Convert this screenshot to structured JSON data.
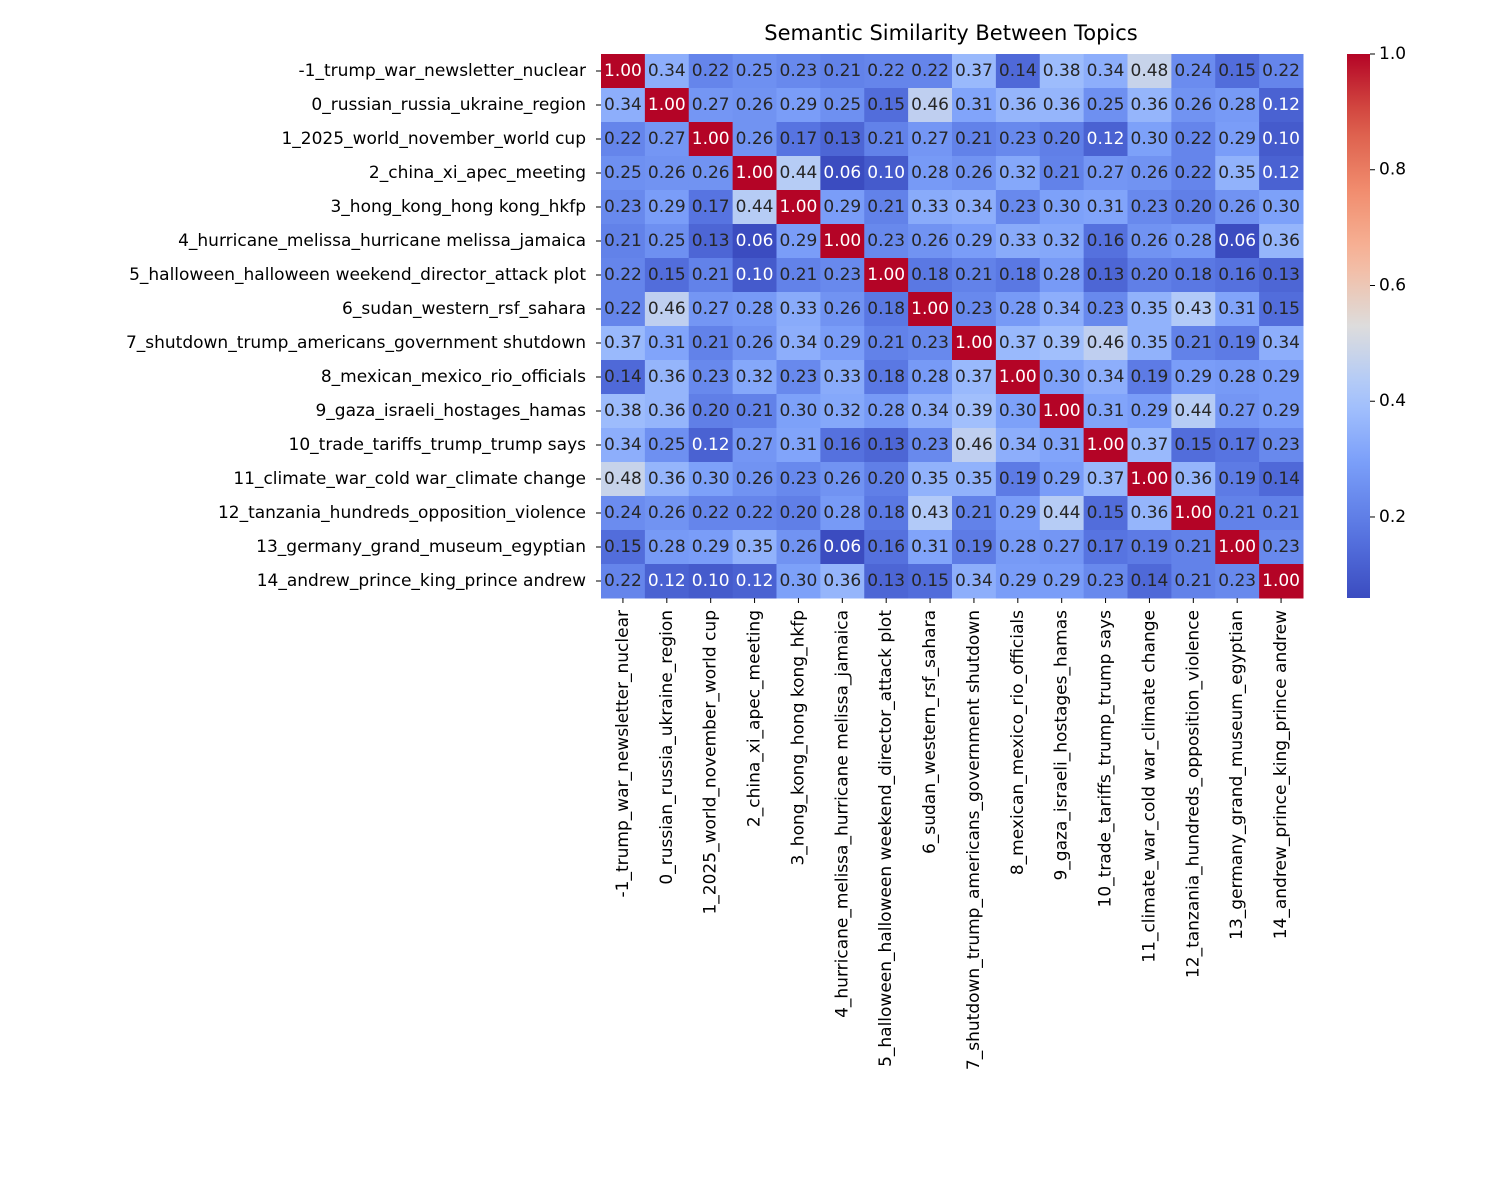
{
  "chart_data": {
    "type": "heatmap",
    "title": "Semantic Similarity Between Topics",
    "categories": [
      "-1_trump_war_newsletter_nuclear",
      "0_russian_russia_ukraine_region",
      "1_2025_world_november_world cup",
      "2_china_xi_apec_meeting",
      "3_hong_kong_hong kong_hkfp",
      "4_hurricane_melissa_hurricane melissa_jamaica",
      "5_halloween_halloween weekend_director_attack plot",
      "6_sudan_western_rsf_sahara",
      "7_shutdown_trump_americans_government shutdown",
      "8_mexican_mexico_rio_officials",
      "9_gaza_israeli_hostages_hamas",
      "10_trade_tariffs_trump_trump says",
      "11_climate_war_cold war_climate change",
      "12_tanzania_hundreds_opposition_violence",
      "13_germany_grand_museum_egyptian",
      "14_andrew_prince_king_prince andrew"
    ],
    "values": [
      [
        1.0,
        0.34,
        0.22,
        0.25,
        0.23,
        0.21,
        0.22,
        0.22,
        0.37,
        0.14,
        0.38,
        0.34,
        0.48,
        0.24,
        0.15,
        0.22
      ],
      [
        0.34,
        1.0,
        0.27,
        0.26,
        0.29,
        0.25,
        0.15,
        0.46,
        0.31,
        0.36,
        0.36,
        0.25,
        0.36,
        0.26,
        0.28,
        0.12
      ],
      [
        0.22,
        0.27,
        1.0,
        0.26,
        0.17,
        0.13,
        0.21,
        0.27,
        0.21,
        0.23,
        0.2,
        0.12,
        0.3,
        0.22,
        0.29,
        0.1
      ],
      [
        0.25,
        0.26,
        0.26,
        1.0,
        0.44,
        0.06,
        0.1,
        0.28,
        0.26,
        0.32,
        0.21,
        0.27,
        0.26,
        0.22,
        0.35,
        0.12
      ],
      [
        0.23,
        0.29,
        0.17,
        0.44,
        1.0,
        0.29,
        0.21,
        0.33,
        0.34,
        0.23,
        0.3,
        0.31,
        0.23,
        0.2,
        0.26,
        0.3
      ],
      [
        0.21,
        0.25,
        0.13,
        0.06,
        0.29,
        1.0,
        0.23,
        0.26,
        0.29,
        0.33,
        0.32,
        0.16,
        0.26,
        0.28,
        0.06,
        0.36
      ],
      [
        0.22,
        0.15,
        0.21,
        0.1,
        0.21,
        0.23,
        1.0,
        0.18,
        0.21,
        0.18,
        0.28,
        0.13,
        0.2,
        0.18,
        0.16,
        0.13
      ],
      [
        0.22,
        0.46,
        0.27,
        0.28,
        0.33,
        0.26,
        0.18,
        1.0,
        0.23,
        0.28,
        0.34,
        0.23,
        0.35,
        0.43,
        0.31,
        0.15
      ],
      [
        0.37,
        0.31,
        0.21,
        0.26,
        0.34,
        0.29,
        0.21,
        0.23,
        1.0,
        0.37,
        0.39,
        0.46,
        0.35,
        0.21,
        0.19,
        0.34
      ],
      [
        0.14,
        0.36,
        0.23,
        0.32,
        0.23,
        0.33,
        0.18,
        0.28,
        0.37,
        1.0,
        0.3,
        0.34,
        0.19,
        0.29,
        0.28,
        0.29
      ],
      [
        0.38,
        0.36,
        0.2,
        0.21,
        0.3,
        0.32,
        0.28,
        0.34,
        0.39,
        0.3,
        1.0,
        0.31,
        0.29,
        0.44,
        0.27,
        0.29
      ],
      [
        0.34,
        0.25,
        0.12,
        0.27,
        0.31,
        0.16,
        0.13,
        0.23,
        0.46,
        0.34,
        0.31,
        1.0,
        0.37,
        0.15,
        0.17,
        0.23
      ],
      [
        0.48,
        0.36,
        0.3,
        0.26,
        0.23,
        0.26,
        0.2,
        0.35,
        0.35,
        0.19,
        0.29,
        0.37,
        1.0,
        0.36,
        0.19,
        0.14
      ],
      [
        0.24,
        0.26,
        0.22,
        0.22,
        0.2,
        0.28,
        0.18,
        0.43,
        0.21,
        0.29,
        0.44,
        0.15,
        0.36,
        1.0,
        0.21,
        0.21
      ],
      [
        0.15,
        0.28,
        0.29,
        0.35,
        0.26,
        0.06,
        0.16,
        0.31,
        0.19,
        0.28,
        0.27,
        0.17,
        0.19,
        0.21,
        1.0,
        0.23
      ],
      [
        0.22,
        0.12,
        0.1,
        0.12,
        0.3,
        0.36,
        0.13,
        0.15,
        0.34,
        0.29,
        0.29,
        0.23,
        0.14,
        0.21,
        0.23,
        1.0
      ]
    ],
    "value_labels": [
      [
        "1.00",
        "0.34",
        "0.22",
        "0.25",
        "0.23",
        "0.21",
        "0.22",
        "0.22",
        "0.37",
        "0.14",
        "0.38",
        "0.34",
        "0.48",
        "0.24",
        "0.15",
        "0.22"
      ],
      [
        "0.34",
        "1.00",
        "0.27",
        "0.26",
        "0.29",
        "0.25",
        "0.15",
        "0.46",
        "0.31",
        "0.36",
        "0.36",
        "0.25",
        "0.36",
        "0.26",
        "0.28",
        "0.12"
      ],
      [
        "0.22",
        "0.27",
        "1.00",
        "0.26",
        "0.17",
        "0.13",
        "0.21",
        "0.27",
        "0.21",
        "0.23",
        "0.20",
        "0.12",
        "0.30",
        "0.22",
        "0.29",
        "0.10"
      ],
      [
        "0.25",
        "0.26",
        "0.26",
        "1.00",
        "0.44",
        "0.06",
        "0.10",
        "0.28",
        "0.26",
        "0.32",
        "0.21",
        "0.27",
        "0.26",
        "0.22",
        "0.35",
        "0.12"
      ],
      [
        "0.23",
        "0.29",
        "0.17",
        "0.44",
        "1.00",
        "0.29",
        "0.21",
        "0.33",
        "0.34",
        "0.23",
        "0.30",
        "0.31",
        "0.23",
        "0.20",
        "0.26",
        "0.30"
      ],
      [
        "0.21",
        "0.25",
        "0.13",
        "0.06",
        "0.29",
        "1.00",
        "0.23",
        "0.26",
        "0.29",
        "0.33",
        "0.32",
        "0.16",
        "0.26",
        "0.28",
        "0.06",
        "0.36"
      ],
      [
        "0.22",
        "0.15",
        "0.21",
        "0.10",
        "0.21",
        "0.23",
        "1.00",
        "0.18",
        "0.21",
        "0.18",
        "0.28",
        "0.13",
        "0.20",
        "0.18",
        "0.16",
        "0.13"
      ],
      [
        "0.22",
        "0.46",
        "0.27",
        "0.28",
        "0.33",
        "0.26",
        "0.18",
        "1.00",
        "0.23",
        "0.28",
        "0.34",
        "0.23",
        "0.35",
        "0.43",
        "0.31",
        "0.15"
      ],
      [
        "0.37",
        "0.31",
        "0.21",
        "0.26",
        "0.34",
        "0.29",
        "0.21",
        "0.23",
        "1.00",
        "0.37",
        "0.39",
        "0.46",
        "0.35",
        "0.21",
        "0.19",
        "0.34"
      ],
      [
        "0.14",
        "0.36",
        "0.23",
        "0.32",
        "0.23",
        "0.33",
        "0.18",
        "0.28",
        "0.37",
        "1.00",
        "0.30",
        "0.34",
        "0.19",
        "0.29",
        "0.28",
        "0.29"
      ],
      [
        "0.38",
        "0.36",
        "0.20",
        "0.21",
        "0.30",
        "0.32",
        "0.28",
        "0.34",
        "0.39",
        "0.30",
        "1.00",
        "0.31",
        "0.29",
        "0.44",
        "0.27",
        "0.29"
      ],
      [
        "0.34",
        "0.25",
        "0.12",
        "0.27",
        "0.31",
        "0.16",
        "0.13",
        "0.23",
        "0.46",
        "0.34",
        "0.31",
        "1.00",
        "0.37",
        "0.15",
        "0.17",
        "0.23"
      ],
      [
        "0.48",
        "0.36",
        "0.30",
        "0.26",
        "0.23",
        "0.26",
        "0.20",
        "0.35",
        "0.35",
        "0.19",
        "0.29",
        "0.37",
        "1.00",
        "0.36",
        "0.19",
        "0.14"
      ],
      [
        "0.24",
        "0.26",
        "0.22",
        "0.22",
        "0.20",
        "0.28",
        "0.18",
        "0.43",
        "0.21",
        "0.29",
        "0.44",
        "0.15",
        "0.36",
        "1.00",
        "0.21",
        "0.21"
      ],
      [
        "0.15",
        "0.28",
        "0.29",
        "0.35",
        "0.26",
        "0.06",
        "0.16",
        "0.31",
        "0.19",
        "0.28",
        "0.27",
        "0.17",
        "0.19",
        "0.21",
        "1.00",
        "0.23"
      ],
      [
        "0.22",
        "0.12",
        "0.10",
        "0.12",
        "0.30",
        "0.36",
        "0.13",
        "0.15",
        "0.34",
        "0.29",
        "0.29",
        "0.23",
        "0.14",
        "0.21",
        "0.23",
        "1.00"
      ]
    ],
    "colormap": "coolwarm",
    "clim": [
      0.06,
      1.0
    ],
    "cticks": [
      0.2,
      0.4,
      0.6,
      0.8,
      {
        "value": 1,
        "label": "1.0"
      }
    ]
  }
}
